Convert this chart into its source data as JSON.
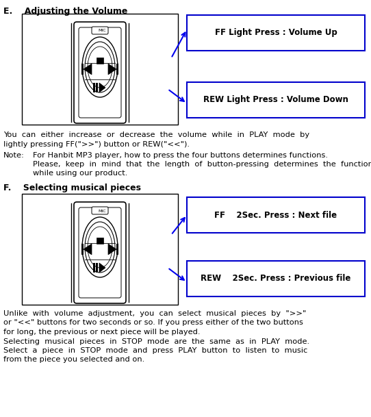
{
  "title_e": "E.    Adjusting the Volume",
  "title_f": "F.    Selecting musical pieces",
  "box1_text": "FF Light Press : Volume Up",
  "box2_text": "REW Light Press : Volume Down",
  "box3_text": "FF    2Sec. Press : Next file",
  "box4_text": "REW    2Sec. Press : Previous file",
  "para1_line1": "You  can  either  increase  or  decrease  the  volume  while  in  PLAY  mode  by",
  "para1_line2": "lightly pressing FF(\">>\") button or REW(\"<<\").",
  "note_label": "Note:",
  "note_line1": "For Hanbit MP3 player, how to press the four buttons determines functions.",
  "note_line2": "Please,  keep  in  mind  that  the  length  of  button-pressing  determines  the  function",
  "note_line3": "while using our product.",
  "para2_line1": "Unlike  with  volume  adjustment,  you  can  select  musical  pieces  by  \">>\"",
  "para2_line2": "or \"<<\" buttons for two seconds or so. If you press either of the two buttons",
  "para2_line3": "for long, the previous or next piece will be played.",
  "para2_line4": "Selecting  musical  pieces  in  STOP  mode  are  the  same  as  in  PLAY  mode.",
  "para2_line5": "Select  a  piece  in  STOP  mode  and  press  PLAY  button  to  listen  to  music",
  "para2_line6": "from the piece you selected and on.",
  "box_color": "#0000cc",
  "text_color": "#000000",
  "bg_color": "#ffffff",
  "arrow_color": "#0000ee",
  "img_border": "#000000"
}
